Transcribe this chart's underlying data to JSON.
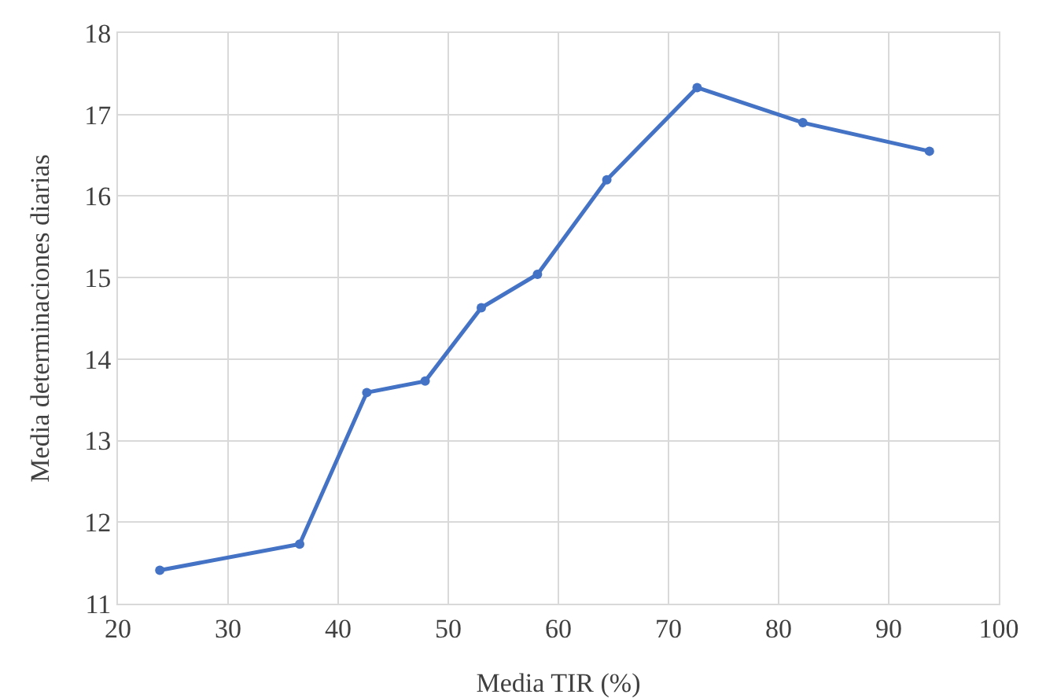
{
  "chart_data": {
    "type": "line",
    "xlabel": "Media TIR (%)",
    "ylabel": "Media determinaciones diarias",
    "x": [
      23.8,
      36.5,
      42.6,
      47.9,
      53.0,
      58.1,
      64.4,
      72.6,
      82.2,
      93.7
    ],
    "series": [
      {
        "color": "#4472c4",
        "values": [
          11.41,
          11.73,
          13.59,
          13.73,
          14.63,
          15.04,
          16.2,
          17.33,
          16.9,
          16.55
        ]
      }
    ],
    "xlim": [
      20,
      100
    ],
    "xticks": [
      20,
      30,
      40,
      50,
      60,
      70,
      80,
      90,
      100
    ],
    "ylim": [
      11,
      18
    ],
    "yticks": [
      11,
      12,
      13,
      14,
      15,
      16,
      17,
      18
    ],
    "grid": true,
    "marker": "circle",
    "line_style": "solid"
  }
}
